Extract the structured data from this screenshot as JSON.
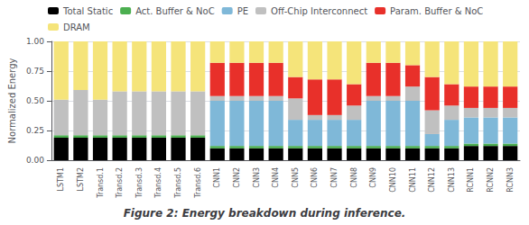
{
  "chart_data": {
    "type": "bar",
    "stacked": true,
    "title": "Figure 2: Energy breakdown during inference.",
    "ylabel": "Normalized Energy",
    "categories": [
      "LSTM1",
      "LSTM2",
      "Transd.1",
      "Transd.2",
      "Transd.3",
      "Transd.4",
      "Transd.5",
      "Transd.6",
      "CNN1",
      "CNN2",
      "CNN3",
      "CNN4",
      "CNN5",
      "CNN6",
      "CNN7",
      "CNN8",
      "CNN9",
      "CNN10",
      "CNN11",
      "CNN12",
      "CNN13",
      "RCNN1",
      "RCNN2",
      "RCNN3"
    ],
    "series": [
      {
        "name": "Total Static",
        "color": "#000000",
        "values": [
          0.19,
          0.19,
          0.19,
          0.19,
          0.19,
          0.19,
          0.19,
          0.19,
          0.1,
          0.1,
          0.1,
          0.1,
          0.1,
          0.1,
          0.1,
          0.1,
          0.1,
          0.1,
          0.1,
          0.1,
          0.1,
          0.12,
          0.12,
          0.12
        ]
      },
      {
        "name": "Act. Buffer & NoC",
        "color": "#4caf50",
        "values": [
          0.02,
          0.02,
          0.02,
          0.02,
          0.02,
          0.02,
          0.02,
          0.02,
          0.02,
          0.02,
          0.02,
          0.02,
          0.02,
          0.02,
          0.02,
          0.02,
          0.02,
          0.02,
          0.02,
          0.02,
          0.02,
          0.02,
          0.02,
          0.02
        ]
      },
      {
        "name": "PE",
        "color": "#7fb8d8",
        "values": [
          0.0,
          0.0,
          0.0,
          0.0,
          0.0,
          0.0,
          0.0,
          0.0,
          0.38,
          0.38,
          0.38,
          0.38,
          0.22,
          0.22,
          0.22,
          0.22,
          0.38,
          0.38,
          0.38,
          0.1,
          0.22,
          0.22,
          0.22,
          0.22
        ]
      },
      {
        "name": "Off-Chip Interconnect",
        "color": "#c0c0c0",
        "values": [
          0.3,
          0.38,
          0.3,
          0.37,
          0.37,
          0.37,
          0.37,
          0.37,
          0.04,
          0.04,
          0.04,
          0.04,
          0.18,
          0.04,
          0.04,
          0.12,
          0.04,
          0.04,
          0.12,
          0.2,
          0.12,
          0.08,
          0.08,
          0.08
        ]
      },
      {
        "name": "Param. Buffer & NoC",
        "color": "#e8302a",
        "values": [
          0.0,
          0.0,
          0.0,
          0.0,
          0.0,
          0.0,
          0.0,
          0.0,
          0.28,
          0.28,
          0.28,
          0.28,
          0.18,
          0.3,
          0.3,
          0.18,
          0.28,
          0.28,
          0.18,
          0.28,
          0.18,
          0.18,
          0.18,
          0.18
        ]
      },
      {
        "name": "DRAM",
        "color": "#f5e47a",
        "values": [
          0.49,
          0.41,
          0.49,
          0.42,
          0.42,
          0.42,
          0.42,
          0.42,
          0.18,
          0.18,
          0.18,
          0.18,
          0.3,
          0.32,
          0.32,
          0.36,
          0.18,
          0.18,
          0.2,
          0.3,
          0.36,
          0.38,
          0.38,
          0.38
        ]
      }
    ],
    "ylim": [
      0.0,
      1.0
    ],
    "yticks": [
      {
        "value": 0.0,
        "label": "0.00"
      },
      {
        "value": 0.25,
        "label": "0.25"
      },
      {
        "value": 0.5,
        "label": "0.50"
      },
      {
        "value": 0.75,
        "label": "0.75"
      },
      {
        "value": 1.0,
        "label": "1.00"
      }
    ],
    "grid": true,
    "legend": "upper left"
  }
}
